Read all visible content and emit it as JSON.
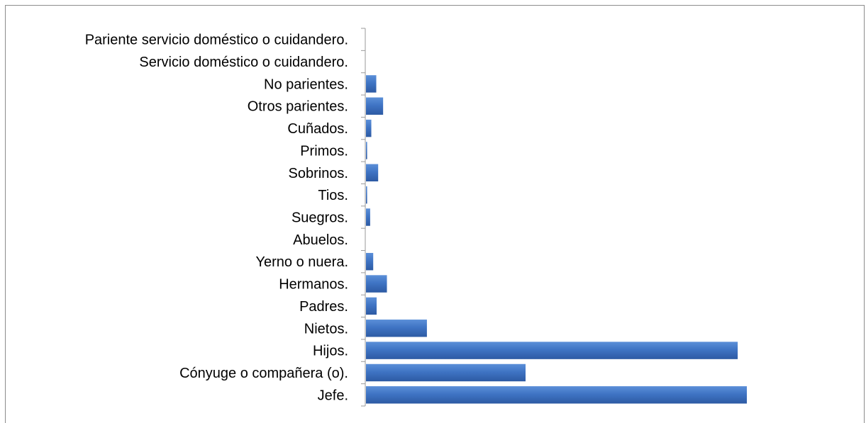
{
  "chart_data": {
    "type": "bar",
    "orientation": "horizontal",
    "categories": [
      "Jefe.",
      "Cónyuge o compañera (o).",
      "Hijos.",
      "Nietos.",
      "Padres.",
      "Hermanos.",
      "Yerno o nuera.",
      "Abuelos.",
      "Suegros.",
      "Tios.",
      "Sobrinos.",
      "Primos.",
      "Cuñados.",
      "Otros parientes.",
      "No parientes.",
      "Servicio doméstico o cuidandero.",
      "Pariente servicio doméstico o cuidandero."
    ],
    "values": [
      1000,
      419,
      976,
      160,
      28,
      55,
      19,
      0,
      11,
      3,
      32,
      3,
      14,
      45,
      27,
      0,
      0
    ],
    "xlim": [
      0,
      1000
    ],
    "bar_color": "#3f74c4",
    "axis_color": "#9a9a9a",
    "title": "",
    "xlabel": "",
    "ylabel": "",
    "grid": false,
    "legend": "none"
  }
}
